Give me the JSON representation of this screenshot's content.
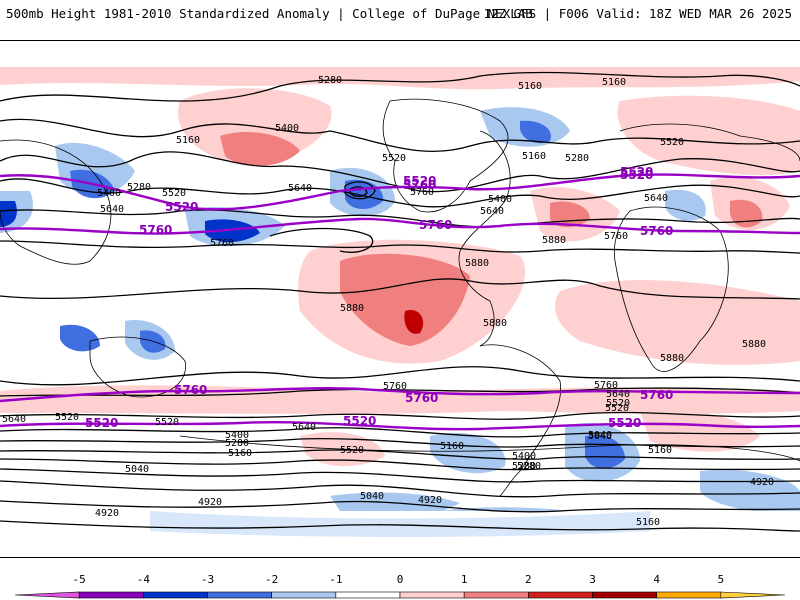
{
  "header": {
    "left_title": "500mb Height 1981-2010 Standardized Anomaly | College of DuPage NEXLAB",
    "right_title": "12Z GFS | F006 Valid: 18Z WED MAR 26 2025"
  },
  "map": {
    "projection": "global cylindrical",
    "field": "500mb geopotential height (dam) with standardized anomaly shading",
    "contour_color": "#000000",
    "highlight_contour_color": "#9a00c8",
    "labels_black": [
      "5280",
      "5160",
      "5400",
      "5160",
      "5520",
      "5160",
      "5280",
      "5520",
      "5160",
      "5400",
      "5280",
      "5520",
      "5640",
      "5400",
      "5640",
      "5760",
      "5640",
      "5760",
      "5880",
      "5880",
      "5880",
      "5880",
      "5880",
      "5640",
      "5880",
      "5760",
      "5760",
      "5640",
      "5520",
      "5520",
      "5760",
      "5640",
      "5400",
      "5280",
      "5160",
      "5040",
      "5520",
      "5160",
      "5400",
      "5280",
      "5040",
      "4920",
      "4920",
      "5040",
      "5160",
      "5520",
      "4920",
      "4920",
      "5640",
      "5520",
      "5280",
      "5040",
      "5160"
    ],
    "labels_purple": [
      "5520",
      "5520",
      "5760",
      "5760",
      "5520",
      "5760",
      "5760",
      "5760",
      "5760",
      "5520",
      "5520",
      "5520",
      "5760",
      "5520"
    ]
  },
  "colorbar": {
    "ticks": [
      "-5",
      "-4",
      "-3",
      "-2",
      "-1",
      "0",
      "1",
      "2",
      "3",
      "4",
      "5"
    ],
    "colors": [
      "#e055e0",
      "#8a00b8",
      "#0033c8",
      "#3f6fe0",
      "#a8c8f0",
      "#ffffff",
      "#ffd0d0",
      "#f08080",
      "#d22020",
      "#a00000",
      "#ffaa00",
      "#ffd040"
    ]
  }
}
